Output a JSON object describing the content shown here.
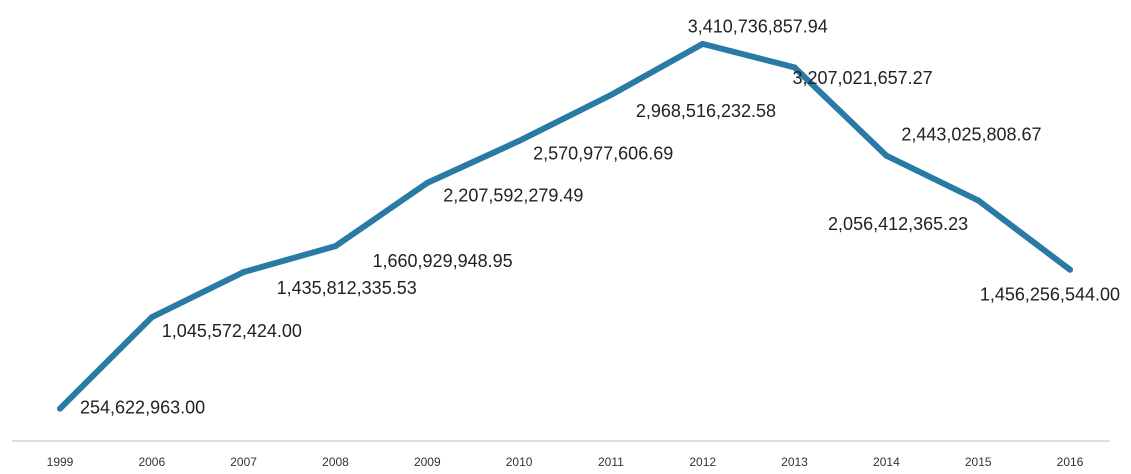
{
  "chart_data": {
    "type": "line",
    "title": "",
    "xlabel": "",
    "ylabel": "",
    "categories": [
      "1999",
      "2006",
      "2007",
      "2008",
      "2009",
      "2010",
      "2011",
      "2012",
      "2013",
      "2014",
      "2015",
      "2016"
    ],
    "series": [
      {
        "values": [
          254622963.0,
          1045572424.0,
          1435812335.53,
          1660929948.95,
          2207592279.49,
          2570977606.69,
          2968516232.58,
          3410736857.94,
          3207021657.27,
          2443025808.67,
          2056412365.23,
          1456256544.0
        ],
        "data_labels": [
          "254,622,963.00",
          "1,045,572,424.00",
          "1,435,812,335.53",
          "1,660,929,948.95",
          "2,207,592,279.49",
          "2,570,977,606.69",
          "2,968,516,232.58",
          "3,410,736,857.94",
          "3,207,021,657.27",
          "2,443,025,808.67",
          "2,056,412,365.23",
          "1,456,256,544.00"
        ],
        "color": "#2a7aa6"
      }
    ],
    "ylim": [
      0,
      3600000000
    ],
    "grid": false,
    "legend": "none",
    "axis_color": "#bfbfbf"
  }
}
